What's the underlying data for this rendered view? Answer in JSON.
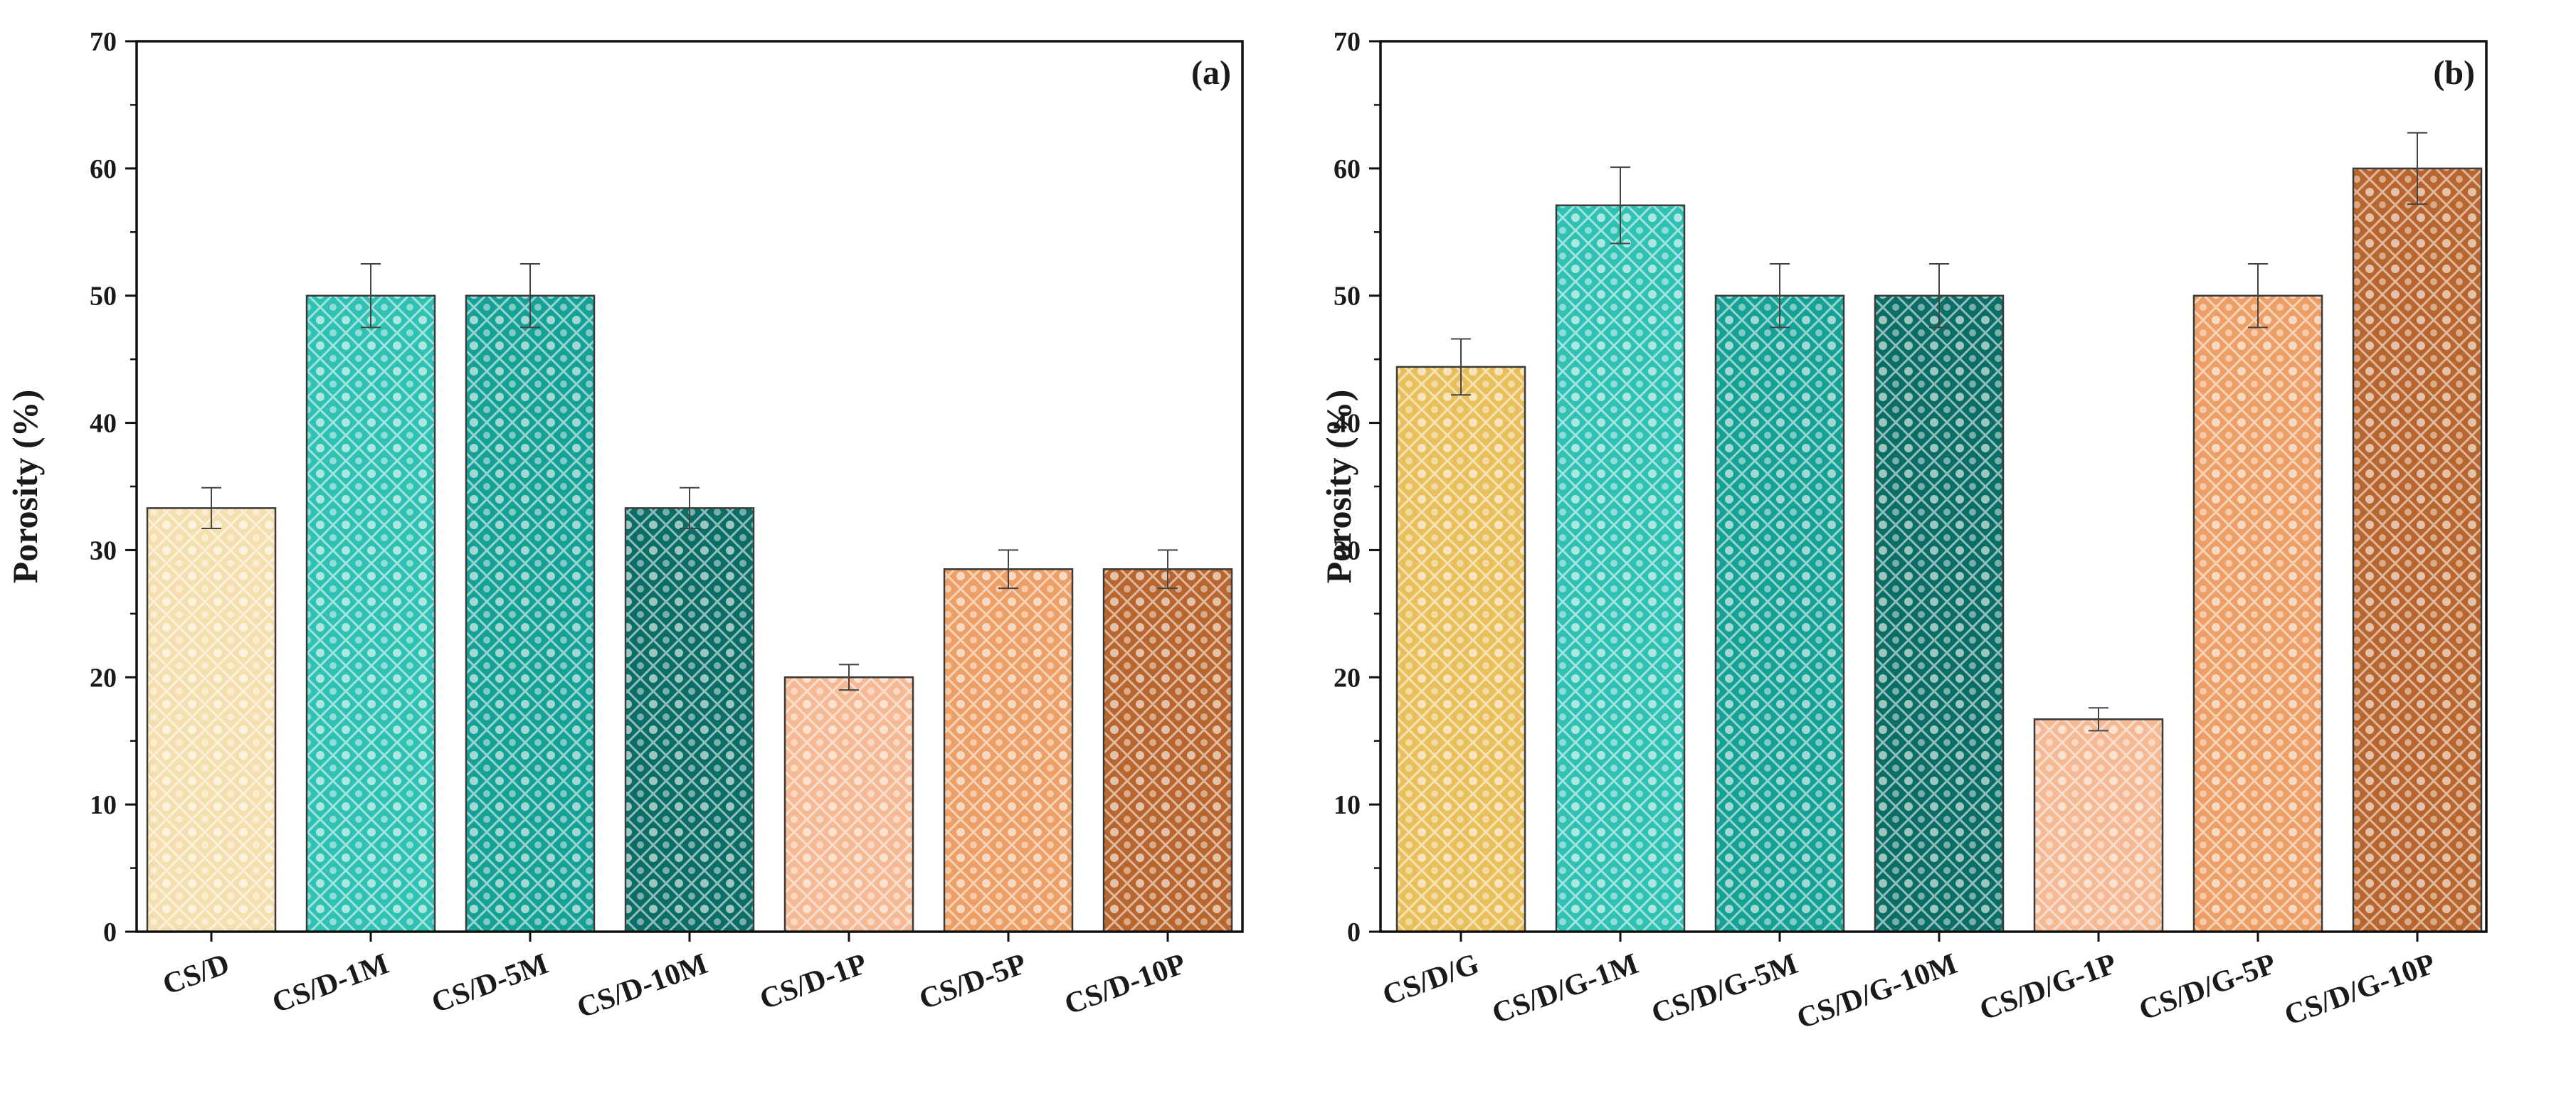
{
  "chart_data": [
    {
      "type": "bar",
      "panel_label": "(a)",
      "title": "",
      "xlabel": "",
      "ylabel": "Porosity (%)",
      "ylim": [
        0,
        70
      ],
      "yticks": [
        0,
        10,
        20,
        30,
        40,
        50,
        60,
        70
      ],
      "grid": false,
      "categories": [
        "CS/D",
        "CS/D-1M",
        "CS/D-5M",
        "CS/D-10M",
        "CS/D-1P",
        "CS/D-5P",
        "CS/D-10P"
      ],
      "values": [
        33.3,
        50,
        50,
        33.3,
        20,
        28.5,
        28.5
      ],
      "errors": [
        1.6,
        2.5,
        2.5,
        1.6,
        1.0,
        1.5,
        1.5
      ],
      "colors": [
        "#f6dfae",
        "#2fc2b4",
        "#16a196",
        "#0a6e66",
        "#f5b994",
        "#ee9f66",
        "#b8662e"
      ]
    },
    {
      "type": "bar",
      "panel_label": "(b)",
      "title": "",
      "xlabel": "",
      "ylabel": "Porosity (%)",
      "ylim": [
        0,
        70
      ],
      "yticks": [
        0,
        10,
        20,
        30,
        40,
        50,
        60,
        70
      ],
      "grid": false,
      "categories": [
        "CS/D/G",
        "CS/D/G-1M",
        "CS/D/G-5M",
        "CS/D/G-10M",
        "CS/D/G-1P",
        "CS/D/G-5P",
        "CS/D/G-10P"
      ],
      "values": [
        44.4,
        57.1,
        50,
        50,
        16.7,
        50,
        60
      ],
      "errors": [
        2.2,
        3.0,
        2.5,
        2.5,
        0.9,
        2.5,
        2.8
      ],
      "colors": [
        "#e8bf5a",
        "#2fc2b4",
        "#16a196",
        "#0a6e66",
        "#f5b994",
        "#ee9f66",
        "#b8662e"
      ]
    }
  ]
}
